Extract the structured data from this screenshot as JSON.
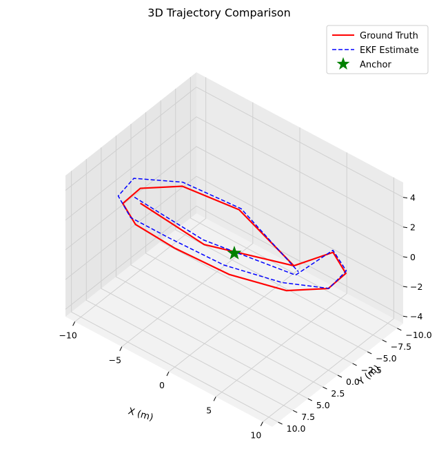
{
  "chart_data": {
    "type": "line",
    "projection": "3d",
    "title": "3D Trajectory Comparison",
    "xlabel": "X (m)",
    "ylabel": "Y (m)",
    "zlabel": "",
    "xlim": [
      -11,
      11
    ],
    "ylim": [
      -11,
      11
    ],
    "zlim": [
      -4.5,
      5
    ],
    "xticks": [
      "−10",
      "−5",
      "0",
      "5",
      "10"
    ],
    "yticks": [
      "−10.0",
      "−7.5",
      "−5.0",
      "−2.5",
      "0.0",
      "2.5",
      "5.0",
      "7.5",
      "10.0"
    ],
    "zticks": [
      "−4",
      "−2",
      "0",
      "2",
      "4"
    ],
    "grid": true,
    "legend_position": "top-right",
    "series": [
      {
        "name": "Ground Truth",
        "color": "#ff0000",
        "style": "solid",
        "points": [
          [
            -10.0,
            0.0,
            0.0
          ],
          [
            -5.5,
            -3.6,
            -2.4
          ],
          [
            0.0,
            -10.0,
            -4.0
          ],
          [
            5.0,
            -8.7,
            -1.0
          ],
          [
            8.7,
            -5.0,
            0.0
          ],
          [
            10.0,
            0.0,
            1.0
          ],
          [
            8.7,
            5.0,
            2.0
          ],
          [
            5.0,
            8.7,
            3.0
          ],
          [
            0.0,
            10.0,
            3.5
          ],
          [
            -5.0,
            8.7,
            3.0
          ],
          [
            -8.7,
            5.0,
            2.0
          ],
          [
            -10.0,
            0.0,
            1.0
          ],
          [
            -8.7,
            -5.0,
            0.0
          ],
          [
            -5.0,
            -8.7,
            -1.5
          ],
          [
            0.0,
            -10.0,
            -4.0
          ]
        ]
      },
      {
        "name": "EKF Estimate",
        "color": "#0000ff",
        "style": "dashed",
        "points": [
          [
            -10.5,
            0.2,
            0.3
          ],
          [
            -5.2,
            -3.0,
            -1.8
          ],
          [
            0.5,
            -9.5,
            -4.3
          ],
          [
            5.3,
            -8.2,
            -0.6
          ],
          [
            9.0,
            -4.6,
            0.4
          ],
          [
            10.4,
            0.5,
            1.3
          ],
          [
            8.5,
            5.4,
            2.6
          ],
          [
            4.6,
            9.0,
            3.6
          ],
          [
            -0.3,
            10.4,
            4.2
          ],
          [
            -5.4,
            8.9,
            3.4
          ],
          [
            -9.0,
            5.3,
            2.5
          ],
          [
            -10.5,
            0.3,
            1.6
          ],
          [
            -8.4,
            -4.6,
            0.5
          ],
          [
            -4.6,
            -8.4,
            -1.2
          ],
          [
            0.3,
            -10.3,
            -4.4
          ]
        ]
      },
      {
        "name": "Anchor",
        "color": "#008000",
        "marker": "star",
        "points": [
          [
            0.0,
            0.0,
            0.0
          ]
        ]
      }
    ]
  }
}
